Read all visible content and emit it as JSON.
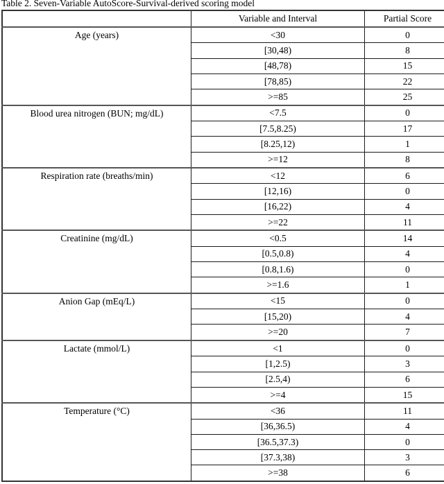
{
  "title": "Table 2. Seven-Variable AutoScore-Survival-derived scoring model",
  "table": {
    "headers": {
      "variable": "",
      "interval": "Variable and Interval",
      "score": "Partial Score"
    },
    "groups": [
      {
        "variable": "Age (years)",
        "rows": [
          {
            "interval": "<30",
            "score": "0"
          },
          {
            "interval": "[30,48)",
            "score": "8"
          },
          {
            "interval": "[48,78)",
            "score": "15"
          },
          {
            "interval": "[78,85)",
            "score": "22"
          },
          {
            "interval": ">=85",
            "score": "25"
          }
        ]
      },
      {
        "variable": "Blood urea nitrogen (BUN; mg/dL)",
        "rows": [
          {
            "interval": "<7.5",
            "score": "0"
          },
          {
            "interval": "[7.5,8.25)",
            "score": "17"
          },
          {
            "interval": "[8.25,12)",
            "score": "1"
          },
          {
            "interval": ">=12",
            "score": "8"
          }
        ]
      },
      {
        "variable": "Respiration rate (breaths/min)",
        "rows": [
          {
            "interval": "<12",
            "score": "6"
          },
          {
            "interval": "[12,16)",
            "score": "0"
          },
          {
            "interval": "[16,22)",
            "score": "4"
          },
          {
            "interval": ">=22",
            "score": "11"
          }
        ]
      },
      {
        "variable": "Creatinine (mg/dL)",
        "rows": [
          {
            "interval": "<0.5",
            "score": "14"
          },
          {
            "interval": "[0.5,0.8)",
            "score": "4"
          },
          {
            "interval": "[0.8,1.6)",
            "score": "0"
          },
          {
            "interval": ">=1.6",
            "score": "1"
          }
        ]
      },
      {
        "variable": "Anion Gap (mEq/L)",
        "rows": [
          {
            "interval": "<15",
            "score": "0"
          },
          {
            "interval": "[15,20)",
            "score": "4"
          },
          {
            "interval": ">=20",
            "score": "7"
          }
        ]
      },
      {
        "variable": "Lactate (mmol/L)",
        "rows": [
          {
            "interval": "<1",
            "score": "0"
          },
          {
            "interval": "[1,2.5)",
            "score": "3"
          },
          {
            "interval": "[2.5,4)",
            "score": "6"
          },
          {
            "interval": ">=4",
            "score": "15"
          }
        ]
      },
      {
        "variable": "Temperature (°C)",
        "rows": [
          {
            "interval": "<36",
            "score": "11"
          },
          {
            "interval": "[36,36.5)",
            "score": "4"
          },
          {
            "interval": "[36.5,37.3)",
            "score": "0"
          },
          {
            "interval": "[37.3,38)",
            "score": "3"
          },
          {
            "interval": ">=38",
            "score": "6"
          }
        ]
      }
    ]
  }
}
